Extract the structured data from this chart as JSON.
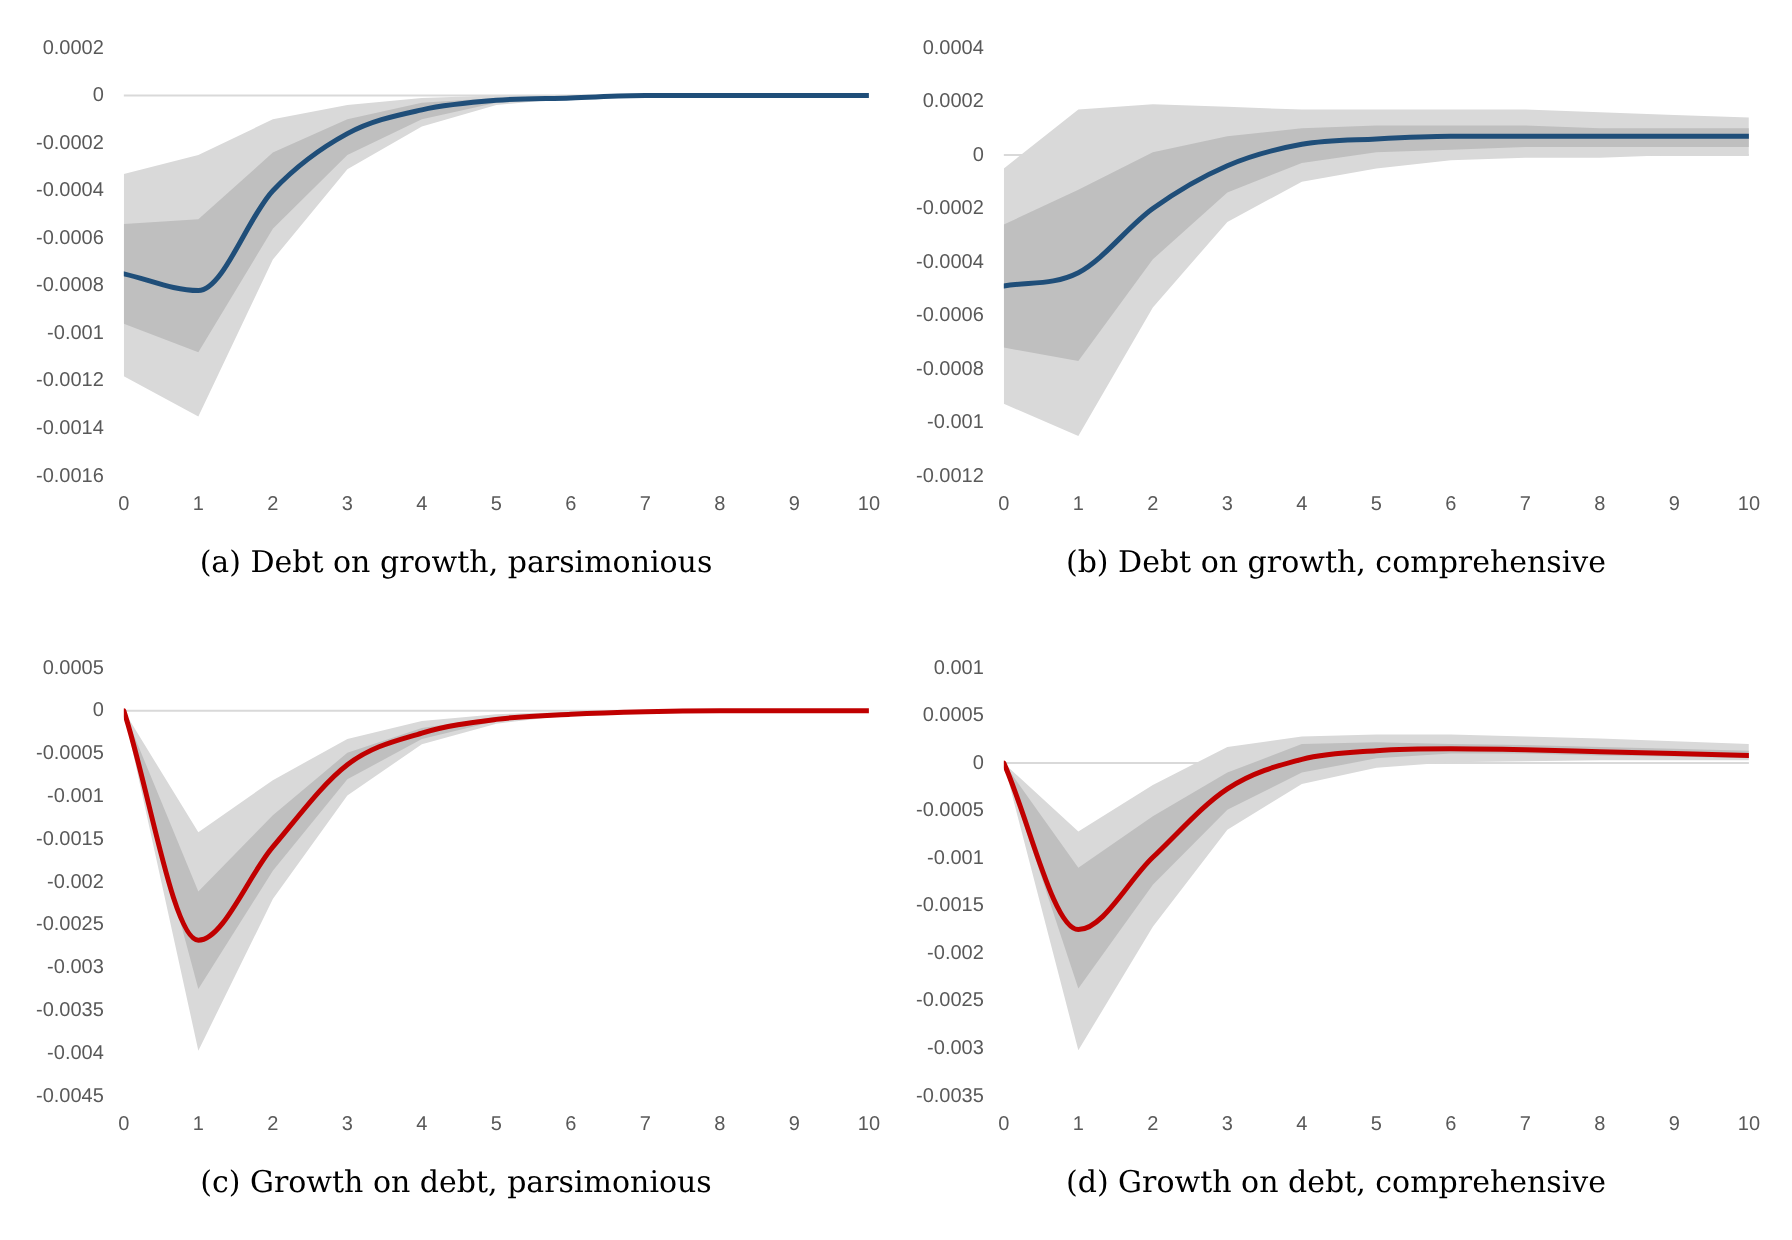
{
  "chart_data": [
    {
      "type": "line",
      "title": "(a) Debt on growth, parsimonious",
      "x": [
        0,
        1,
        2,
        3,
        4,
        5,
        6,
        7,
        8,
        9,
        10
      ],
      "xlim": [
        0,
        10
      ],
      "xticks": [
        0,
        1,
        2,
        3,
        4,
        5,
        6,
        7,
        8,
        9,
        10
      ],
      "ylim": [
        -0.0016,
        0.0002
      ],
      "yticks": [
        0.0002,
        0,
        -0.0002,
        -0.0004,
        -0.0006,
        -0.0008,
        -0.001,
        -0.0012,
        -0.0014,
        -0.0016
      ],
      "grid": false,
      "ref_lines": [
        {
          "axis": "y",
          "value": 0,
          "color": "#d9d9d9"
        }
      ],
      "series": [
        {
          "color": "#d9d9d9",
          "values": [
            null,
            null,
            null,
            null,
            null,
            null,
            null,
            null,
            null,
            null,
            null
          ],
          "upper": [
            -0.00033,
            -0.00025,
            -0.0001,
            -4e-05,
            -1e-05,
            0,
            0,
            0,
            0,
            0,
            0
          ],
          "lower": [
            -0.00118,
            -0.00135,
            -0.00069,
            -0.00031,
            -0.00013,
            -4e-05,
            -1e-05,
            0,
            0,
            0,
            0
          ]
        },
        {
          "color": "#1f4e79",
          "values": [
            -0.00075,
            -0.00082,
            -0.0004,
            -0.00016,
            -6e-05,
            -2e-05,
            -1e-05,
            0,
            0,
            0,
            0
          ],
          "upper": [
            -0.00054,
            -0.00052,
            -0.00024,
            -0.0001,
            -3e-05,
            -1e-05,
            0,
            0,
            0,
            0,
            0
          ],
          "lower": [
            -0.00096,
            -0.00108,
            -0.00056,
            -0.00025,
            -0.0001,
            -3e-05,
            -1e-05,
            0,
            0,
            0,
            0
          ]
        }
      ]
    },
    {
      "type": "line",
      "title": "(b) Debt on growth, comprehensive",
      "x": [
        0,
        1,
        2,
        3,
        4,
        5,
        6,
        7,
        8,
        9,
        10
      ],
      "xlim": [
        0,
        10
      ],
      "xticks": [
        0,
        1,
        2,
        3,
        4,
        5,
        6,
        7,
        8,
        9,
        10
      ],
      "ylim": [
        -0.0012,
        0.0004
      ],
      "yticks": [
        0.0004,
        0.0002,
        0,
        -0.0002,
        -0.0004,
        -0.0006,
        -0.0008,
        -0.001,
        -0.0012
      ],
      "grid": false,
      "ref_lines": [
        {
          "axis": "y",
          "value": 0,
          "color": "#d9d9d9"
        }
      ],
      "series": [
        {
          "color": "#d9d9d9",
          "values": [
            null,
            null,
            null,
            null,
            null,
            null,
            null,
            null,
            null,
            null,
            null
          ],
          "upper": [
            -5e-05,
            0.00017,
            0.00019,
            0.00018,
            0.00017,
            0.00017,
            0.00017,
            0.00017,
            0.00016,
            0.00015,
            0.00014
          ],
          "lower": [
            -0.00093,
            -0.00105,
            -0.00057,
            -0.00025,
            -0.0001,
            -5e-05,
            -2e-05,
            -1e-05,
            -1e-05,
            0,
            0
          ]
        },
        {
          "color": "#1f4e79",
          "values": [
            -0.00049,
            -0.00044,
            -0.0002,
            -4e-05,
            4e-05,
            6e-05,
            7e-05,
            7e-05,
            7e-05,
            7e-05,
            7e-05
          ],
          "upper": [
            -0.00026,
            -0.00013,
            1e-05,
            7e-05,
            0.0001,
            0.00011,
            0.00011,
            0.00011,
            0.0001,
            0.0001,
            0.0001
          ],
          "lower": [
            -0.00072,
            -0.00077,
            -0.00039,
            -0.00014,
            -3e-05,
            1e-05,
            2e-05,
            3e-05,
            3e-05,
            3e-05,
            3e-05
          ]
        }
      ]
    },
    {
      "type": "line",
      "title": "(c) Growth on debt, parsimonious",
      "x": [
        0,
        1,
        2,
        3,
        4,
        5,
        6,
        7,
        8,
        9,
        10
      ],
      "xlim": [
        0,
        10
      ],
      "xticks": [
        0,
        1,
        2,
        3,
        4,
        5,
        6,
        7,
        8,
        9,
        10
      ],
      "ylim": [
        -0.0045,
        0.0005
      ],
      "yticks": [
        0.0005,
        0,
        -0.0005,
        -0.001,
        -0.0015,
        -0.002,
        -0.0025,
        -0.003,
        -0.0035,
        -0.004,
        -0.0045
      ],
      "grid": false,
      "ref_lines": [
        {
          "axis": "y",
          "value": 0,
          "color": "#d9d9d9"
        }
      ],
      "series": [
        {
          "color": "#d9d9d9",
          "values": [
            null,
            null,
            null,
            null,
            null,
            null,
            null,
            null,
            null,
            null,
            null
          ],
          "upper": [
            0,
            -0.00142,
            -0.00081,
            -0.00033,
            -0.00012,
            -4e-05,
            -1e-05,
            0,
            0,
            0,
            0
          ],
          "lower": [
            0,
            -0.00397,
            -0.0022,
            -0.00099,
            -0.00039,
            -0.00015,
            -5e-05,
            -2e-05,
            0,
            0,
            0
          ]
        },
        {
          "color": "#c00000",
          "values": [
            0,
            -0.00268,
            -0.00159,
            -0.00063,
            -0.00026,
            -0.0001,
            -4e-05,
            -1e-05,
            0,
            0,
            0
          ],
          "upper": [
            0,
            -0.00211,
            -0.00122,
            -0.00049,
            -0.0002,
            -7e-05,
            -2e-05,
            0,
            0,
            0,
            0
          ],
          "lower": [
            0,
            -0.00325,
            -0.00187,
            -0.0008,
            -0.00033,
            -0.00012,
            -4e-05,
            -1e-05,
            0,
            0,
            0
          ]
        }
      ]
    },
    {
      "type": "line",
      "title": "(d) Growth on debt, comprehensive",
      "x": [
        0,
        1,
        2,
        3,
        4,
        5,
        6,
        7,
        8,
        9,
        10
      ],
      "xlim": [
        0,
        10
      ],
      "xticks": [
        0,
        1,
        2,
        3,
        4,
        5,
        6,
        7,
        8,
        9,
        10
      ],
      "ylim": [
        -0.0035,
        0.001
      ],
      "yticks": [
        0.001,
        0.0005,
        0,
        -0.0005,
        -0.001,
        -0.0015,
        -0.002,
        -0.0025,
        -0.003,
        -0.0035
      ],
      "grid": false,
      "ref_lines": [
        {
          "axis": "y",
          "value": 0,
          "color": "#d9d9d9"
        }
      ],
      "series": [
        {
          "color": "#d9d9d9",
          "values": [
            null,
            null,
            null,
            null,
            null,
            null,
            null,
            null,
            null,
            null,
            null
          ],
          "upper": [
            0,
            -0.00072,
            -0.00023,
            0.00017,
            0.00028,
            0.0003,
            0.0003,
            0.00028,
            0.00026,
            0.00023,
            0.0002
          ],
          "lower": [
            0,
            -0.00302,
            -0.00172,
            -0.0007,
            -0.00022,
            -5e-05,
            1e-05,
            2e-05,
            3e-05,
            3e-05,
            3e-05
          ]
        },
        {
          "color": "#c00000",
          "values": [
            0,
            -0.00175,
            -0.00099,
            -0.00027,
            4e-05,
            0.00013,
            0.00015,
            0.00014,
            0.00012,
            0.0001,
            8e-05
          ],
          "upper": [
            0,
            -0.0011,
            -0.00056,
            -0.0001,
            0.0002,
            0.00022,
            0.0002,
            0.00019,
            0.00017,
            0.00015,
            0.00013
          ],
          "lower": [
            0,
            -0.00237,
            -0.00128,
            -0.00049,
            -0.0001,
            5e-05,
            0.0001,
            0.0001,
            8e-05,
            7e-05,
            5e-05
          ]
        }
      ]
    }
  ]
}
